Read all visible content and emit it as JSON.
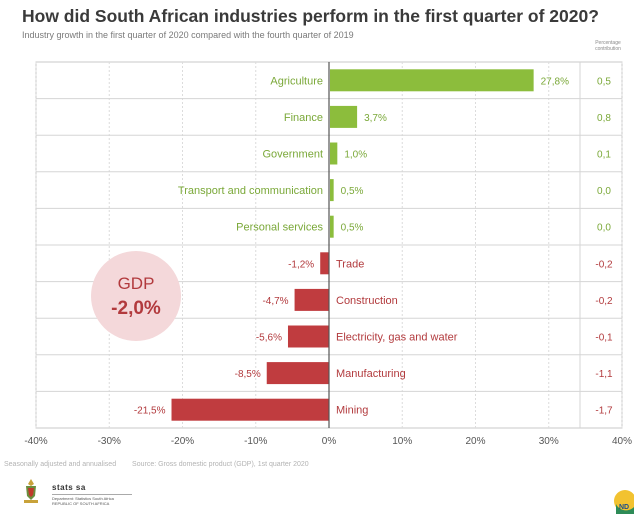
{
  "header": {
    "title": "How did South African industries perform in the first quarter of 2020?",
    "subtitle": "Industry growth in the first quarter of 2020 compared with the fourth quarter of 2019",
    "contribution_header": "Percentage contribution"
  },
  "gdp": {
    "label": "GDP",
    "value": "-2,0%"
  },
  "footer": {
    "note": "Seasonally adjusted and annualised",
    "source": "Source: Gross domestic product (GDP), 1st quarter 2020"
  },
  "logo": {
    "name": "stats sa",
    "sub": "Department: Statistics South Africa REPUBLIC OF SOUTH AFRICA"
  },
  "colors": {
    "positive": "#8cbd3c",
    "negative": "#c03c3f",
    "positive_text": "#7aa838",
    "negative_text": "#b23a3d",
    "gdp_bubble": "#f4d8da"
  },
  "chart_data": {
    "type": "bar",
    "orientation": "horizontal",
    "categories": [
      "Agriculture",
      "Finance",
      "Government",
      "Transport and communication",
      "Personal services",
      "Trade",
      "Construction",
      "Electricity, gas and water",
      "Manufacturing",
      "Mining"
    ],
    "values": [
      27.8,
      3.7,
      1.0,
      0.5,
      0.5,
      -1.2,
      -4.7,
      -5.6,
      -8.5,
      -21.5
    ],
    "value_labels": [
      "27,8%",
      "3,7%",
      "1,0%",
      "0,5%",
      "0,5%",
      "-1,2%",
      "-4,7%",
      "-5,6%",
      "-8,5%",
      "-21,5%"
    ],
    "contributions": [
      "0,5",
      "0,8",
      "0,1",
      "0,0",
      "0,0",
      "-0,2",
      "-0,2",
      "-0,1",
      "-1,1",
      "-1,7"
    ],
    "xlim": [
      -40,
      40
    ],
    "xticks": [
      -40,
      -30,
      -20,
      -10,
      0,
      10,
      20,
      30,
      40
    ],
    "xtick_labels": [
      "-40%",
      "-30%",
      "-20%",
      "-10%",
      "0%",
      "10%",
      "20%",
      "30%",
      "40%"
    ],
    "grid": true
  }
}
